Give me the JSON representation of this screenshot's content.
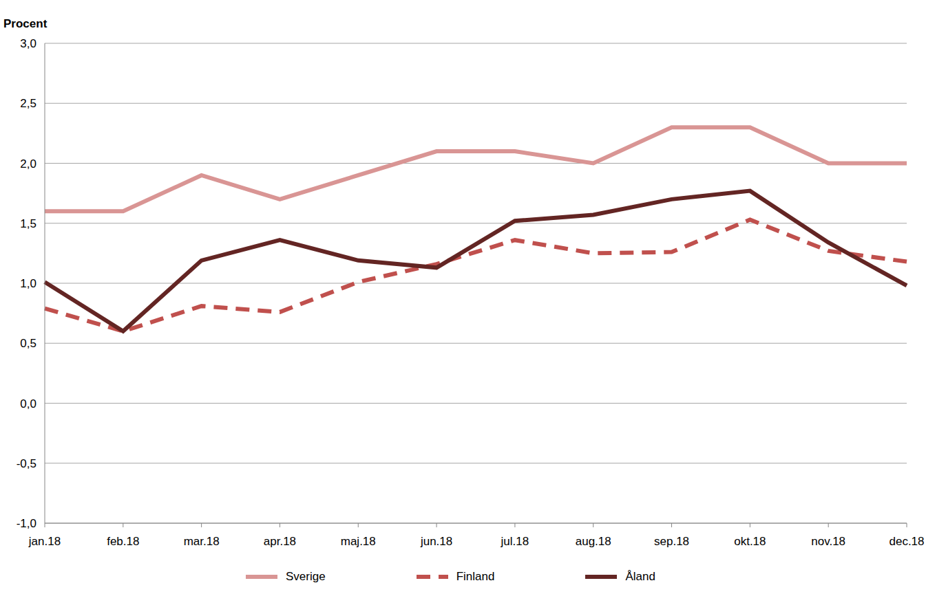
{
  "chart_data": {
    "type": "line",
    "y_label": "Procent",
    "categories": [
      "jan.18",
      "feb.18",
      "mar.18",
      "apr.18",
      "maj.18",
      "jun.18",
      "jul.18",
      "aug.18",
      "sep.18",
      "okt.18",
      "nov.18",
      "dec.18"
    ],
    "series": [
      {
        "name": "Sverige",
        "color": "#d99594",
        "line_style": "solid",
        "values": [
          1.6,
          1.6,
          1.9,
          1.7,
          1.9,
          2.1,
          2.1,
          2.0,
          2.3,
          2.3,
          2.0,
          2.0
        ]
      },
      {
        "name": "Finland",
        "color": "#c0504d",
        "line_style": "dashed",
        "values": [
          0.79,
          0.6,
          0.81,
          0.76,
          1.01,
          1.16,
          1.36,
          1.25,
          1.26,
          1.53,
          1.27,
          1.18
        ]
      },
      {
        "name": "Åland",
        "color": "#632523",
        "line_style": "solid",
        "values": [
          1.01,
          0.6,
          1.19,
          1.36,
          1.19,
          1.13,
          1.52,
          1.57,
          1.7,
          1.77,
          1.34,
          0.98
        ]
      }
    ],
    "ylim": [
      -1.0,
      3.0
    ],
    "yticks": [
      {
        "value": -1.0,
        "label": "-1,0"
      },
      {
        "value": -0.5,
        "label": "-0,5"
      },
      {
        "value": 0,
        "label": "0,0"
      },
      {
        "value": 0.5,
        "label": "0,5"
      },
      {
        "value": 1.0,
        "label": "1,0"
      },
      {
        "value": 1.5,
        "label": "1,5"
      },
      {
        "value": 2.0,
        "label": "2,0"
      },
      {
        "value": 2.5,
        "label": "2,5"
      },
      {
        "value": 3.0,
        "label": "3,0"
      }
    ],
    "grid": true,
    "legend": "bottom"
  }
}
